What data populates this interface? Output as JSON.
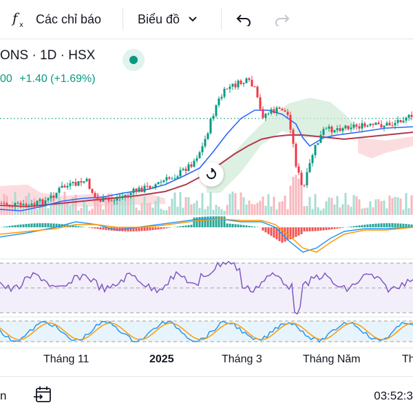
{
  "toolbar": {
    "indicators_label": "Các chỉ báo",
    "chart_type_label": "Biểu đồ"
  },
  "legend": {
    "symbol_line": "ONS · 1D · HSX",
    "change_prefix": "00",
    "change_text": "+1.40 (+1.69%)"
  },
  "x_axis": {
    "labels": [
      "Tháng 11",
      "2025",
      "Tháng 3",
      "Tháng Năm",
      "Th"
    ]
  },
  "bottom": {
    "left_text": "n",
    "time": "03:52:3"
  },
  "colors": {
    "up": "#089981",
    "down": "#f23645",
    "ma_blue": "#2962ff",
    "ma_red": "#b2374a",
    "rsi": "#7e57c2",
    "stoch_blue": "#2196f3",
    "stoch_orange": "#ff9800"
  }
}
